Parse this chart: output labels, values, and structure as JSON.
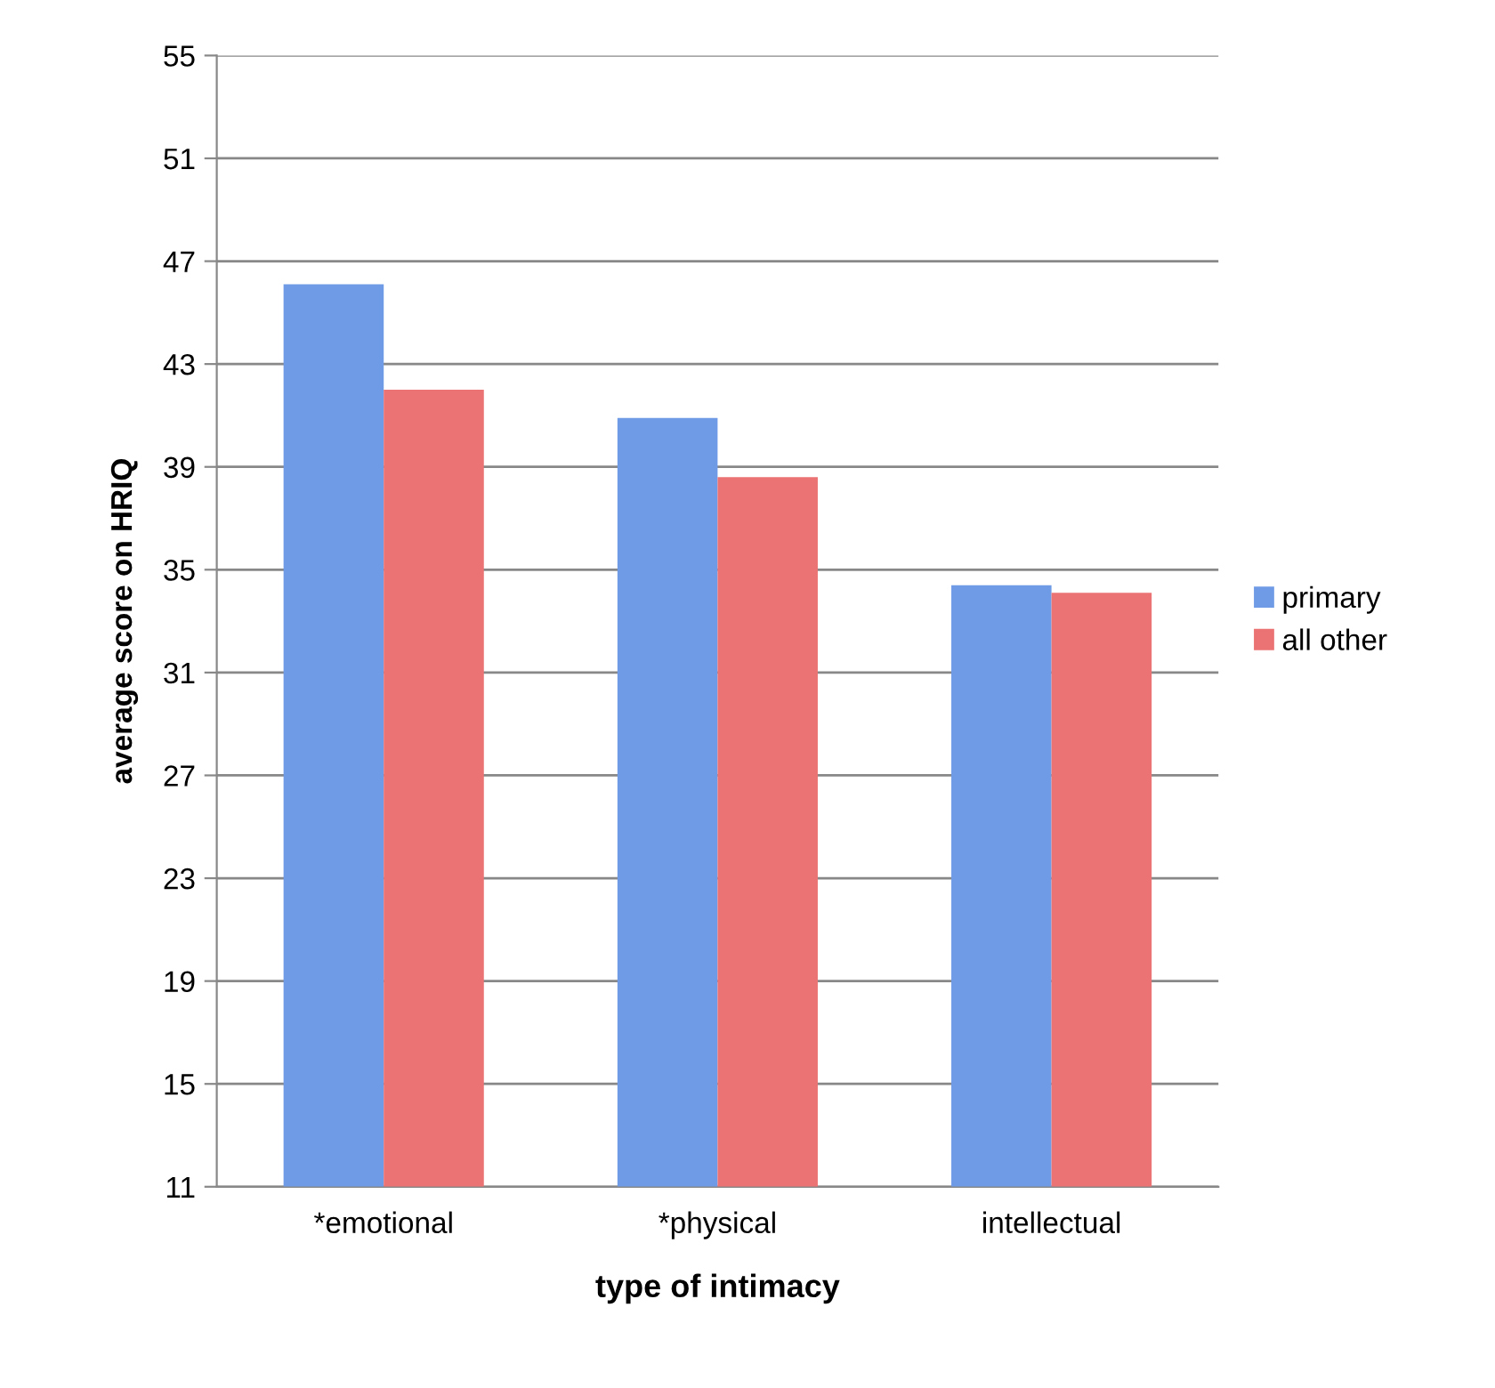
{
  "chart_data": {
    "type": "bar",
    "xlabel": "type of intimacy",
    "ylabel": "average score on HRIQ",
    "categories": [
      "*emotional",
      "*physical",
      "intellectual"
    ],
    "series": [
      {
        "name": "primary",
        "color": "#6f9be6",
        "values": [
          46.1,
          40.9,
          34.4
        ]
      },
      {
        "name": "all other",
        "color": "#eb7373",
        "values": [
          42.0,
          38.6,
          34.1
        ]
      }
    ],
    "ylim": [
      11,
      55
    ],
    "yticks": [
      11,
      15,
      19,
      23,
      27,
      31,
      35,
      39,
      43,
      47,
      51,
      55
    ],
    "grid": "y",
    "legend": "right"
  }
}
